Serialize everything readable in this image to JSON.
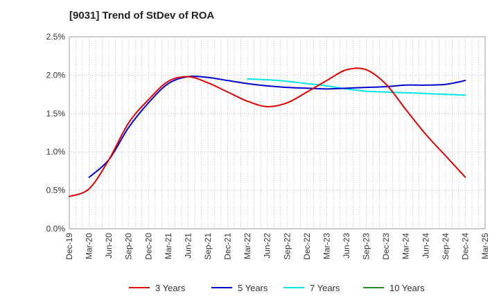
{
  "chart_data": {
    "type": "line",
    "title": "[9031]  Trend of StDev of ROA",
    "xlabel": "",
    "ylabel": "",
    "x_tick_labels": [
      "Dec-19",
      "Mar-20",
      "Jun-20",
      "Sep-20",
      "Dec-20",
      "Mar-21",
      "Jun-21",
      "Sep-21",
      "Dec-21",
      "Mar-22",
      "Jun-22",
      "Sep-22",
      "Dec-22",
      "Mar-23",
      "Jun-23",
      "Sep-23",
      "Dec-23",
      "Mar-24",
      "Jun-24",
      "Sep-24",
      "Dec-24",
      "Mar-25"
    ],
    "y_tick_labels": [
      "0.0%",
      "0.5%",
      "1.0%",
      "1.5%",
      "2.0%",
      "2.5%"
    ],
    "ylim": [
      0,
      2.5
    ],
    "y_unit": "%",
    "grid": true,
    "legend_position": "bottom",
    "series": [
      {
        "name": "3 Years",
        "color": "#e00000",
        "points": [
          [
            "Dec-19",
            0.42
          ],
          [
            "Mar-20",
            0.52
          ],
          [
            "Jun-20",
            0.9
          ],
          [
            "Sep-20",
            1.38
          ],
          [
            "Dec-20",
            1.68
          ],
          [
            "Mar-21",
            1.92
          ],
          [
            "Jun-21",
            1.98
          ],
          [
            "Sep-21",
            1.9
          ],
          [
            "Dec-21",
            1.78
          ],
          [
            "Mar-22",
            1.66
          ],
          [
            "Jun-22",
            1.59
          ],
          [
            "Sep-22",
            1.64
          ],
          [
            "Dec-22",
            1.78
          ],
          [
            "Mar-23",
            1.93
          ],
          [
            "Jun-23",
            2.07
          ],
          [
            "Sep-23",
            2.07
          ],
          [
            "Dec-23",
            1.88
          ],
          [
            "Mar-24",
            1.55
          ],
          [
            "Jun-24",
            1.23
          ],
          [
            "Sep-24",
            0.95
          ],
          [
            "Dec-24",
            0.67
          ]
        ]
      },
      {
        "name": "5 Years",
        "color": "#0000cc",
        "points": [
          [
            "Mar-20",
            0.67
          ],
          [
            "Jun-20",
            0.9
          ],
          [
            "Sep-20",
            1.32
          ],
          [
            "Dec-20",
            1.64
          ],
          [
            "Mar-21",
            1.89
          ],
          [
            "Jun-21",
            1.98
          ],
          [
            "Sep-21",
            1.97
          ],
          [
            "Dec-21",
            1.93
          ],
          [
            "Mar-22",
            1.89
          ],
          [
            "Jun-22",
            1.86
          ],
          [
            "Sep-22",
            1.84
          ],
          [
            "Dec-22",
            1.83
          ],
          [
            "Mar-23",
            1.82
          ],
          [
            "Jun-23",
            1.83
          ],
          [
            "Sep-23",
            1.84
          ],
          [
            "Dec-23",
            1.85
          ],
          [
            "Mar-24",
            1.87
          ],
          [
            "Jun-24",
            1.87
          ],
          [
            "Sep-24",
            1.88
          ],
          [
            "Dec-24",
            1.93
          ]
        ]
      },
      {
        "name": "7 Years",
        "color": "#00e5e5",
        "points": [
          [
            "Mar-22",
            1.95
          ],
          [
            "Jun-22",
            1.94
          ],
          [
            "Sep-22",
            1.92
          ],
          [
            "Dec-22",
            1.89
          ],
          [
            "Mar-23",
            1.86
          ],
          [
            "Jun-23",
            1.82
          ],
          [
            "Sep-23",
            1.79
          ],
          [
            "Dec-23",
            1.78
          ],
          [
            "Mar-24",
            1.77
          ],
          [
            "Jun-24",
            1.76
          ],
          [
            "Sep-24",
            1.75
          ],
          [
            "Dec-24",
            1.74
          ]
        ]
      },
      {
        "name": "10 Years",
        "color": "#228b22",
        "points": []
      }
    ]
  }
}
